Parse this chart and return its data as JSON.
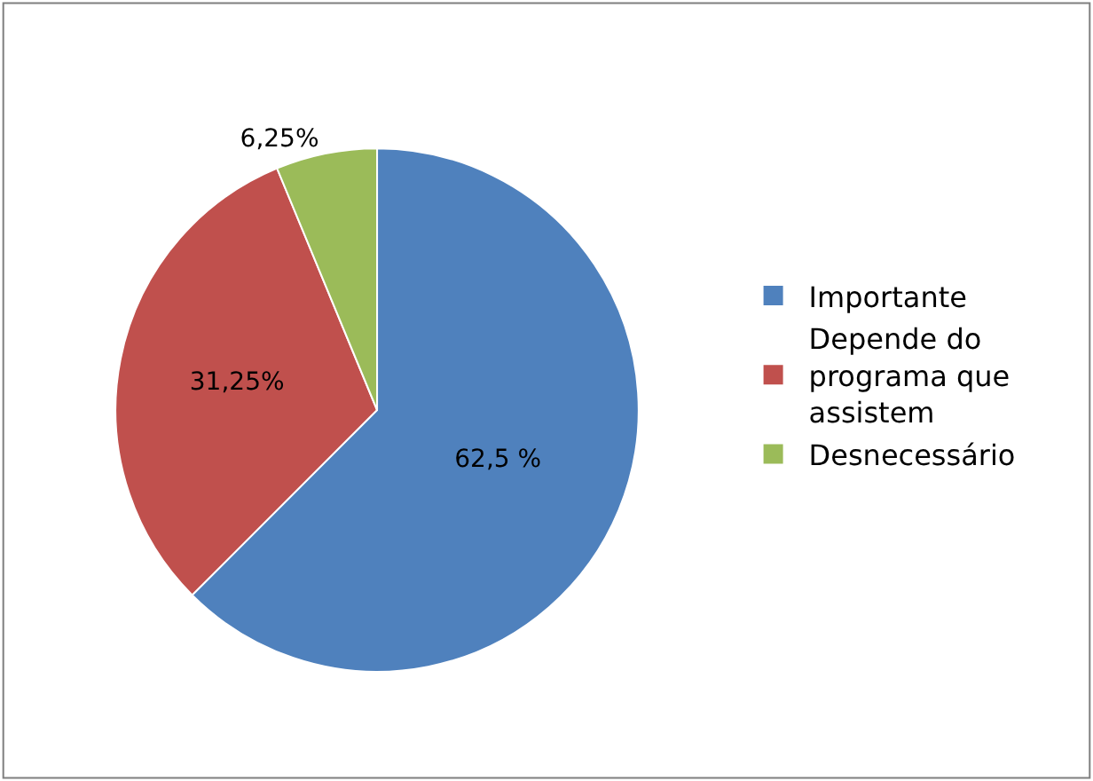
{
  "chart_data": {
    "type": "pie",
    "categories": [
      "Importante",
      "Depende do programa que assistem",
      "Desnecessário"
    ],
    "values": [
      62.5,
      31.25,
      6.25
    ],
    "colors": [
      "#4f81bd",
      "#c0504d",
      "#9bbb59"
    ],
    "value_labels": [
      "62,5 %",
      "31,25%",
      "6,25%"
    ],
    "legend": "right"
  }
}
